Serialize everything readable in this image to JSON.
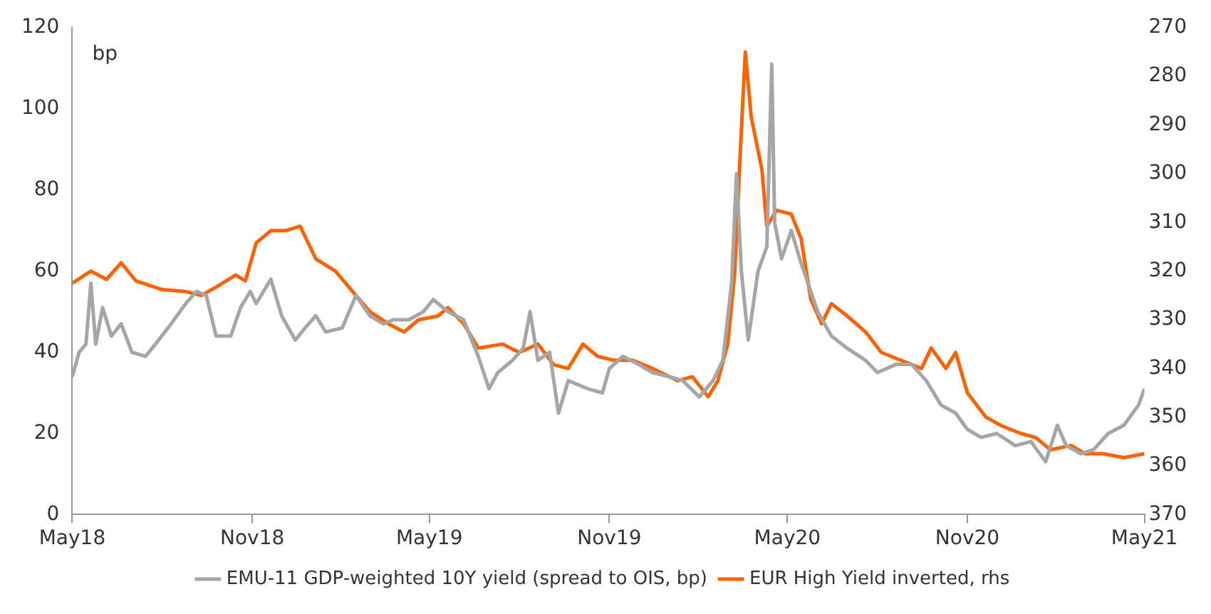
{
  "chart_data": {
    "type": "line",
    "annotations": [
      "bp"
    ],
    "xlim": [
      "2018-05-01",
      "2021-05-01"
    ],
    "xticks": [
      {
        "value": "2018-05-01",
        "label": "May18"
      },
      {
        "value": "2018-11-01",
        "label": "Nov18"
      },
      {
        "value": "2019-05-01",
        "label": "May19"
      },
      {
        "value": "2019-11-01",
        "label": "Nov19"
      },
      {
        "value": "2020-05-01",
        "label": "May20"
      },
      {
        "value": "2020-11-01",
        "label": "Nov20"
      },
      {
        "value": "2021-05-01",
        "label": "May21"
      }
    ],
    "ylim": [
      0,
      120
    ],
    "yticks": [
      0,
      20,
      40,
      60,
      80,
      100,
      120
    ],
    "y2lim": [
      370,
      270
    ],
    "y2ticks": [
      270,
      280,
      290,
      300,
      310,
      320,
      330,
      340,
      350,
      360,
      370
    ],
    "grid": false,
    "legend": "bottom",
    "marker": "none",
    "line_style": "solid",
    "series": [
      {
        "name": "EMU-11 GDP-weighted 10Y yield (spread to OIS, bp)",
        "color": "#a6a6a6",
        "x": [
          "2018-05-01",
          "2018-05-08",
          "2018-05-15",
          "2018-05-20",
          "2018-05-25",
          "2018-06-01",
          "2018-06-10",
          "2018-06-20",
          "2018-07-01",
          "2018-07-15",
          "2018-07-25",
          "2018-08-10",
          "2018-08-25",
          "2018-09-05",
          "2018-09-15",
          "2018-09-25",
          "2018-10-10",
          "2018-10-20",
          "2018-10-30",
          "2018-11-05",
          "2018-11-20",
          "2018-12-01",
          "2018-12-15",
          "2018-12-25",
          "2019-01-05",
          "2019-01-15",
          "2019-02-01",
          "2019-02-15",
          "2019-03-01",
          "2019-03-15",
          "2019-03-25",
          "2019-04-10",
          "2019-04-25",
          "2019-05-05",
          "2019-05-20",
          "2019-06-05",
          "2019-06-20",
          "2019-07-01",
          "2019-07-10",
          "2019-07-25",
          "2019-08-05",
          "2019-08-12",
          "2019-08-20",
          "2019-09-01",
          "2019-09-10",
          "2019-09-20",
          "2019-10-10",
          "2019-10-25",
          "2019-11-01",
          "2019-11-15",
          "2019-12-01",
          "2019-12-15",
          "2020-01-01",
          "2020-01-15",
          "2020-02-01",
          "2020-02-15",
          "2020-02-25",
          "2020-03-05",
          "2020-03-10",
          "2020-03-15",
          "2020-03-22",
          "2020-04-01",
          "2020-04-10",
          "2020-04-15",
          "2020-04-18",
          "2020-04-25",
          "2020-05-05",
          "2020-05-15",
          "2020-06-01",
          "2020-06-15",
          "2020-07-01",
          "2020-07-20",
          "2020-08-01",
          "2020-08-20",
          "2020-09-05",
          "2020-09-20",
          "2020-10-05",
          "2020-10-20",
          "2020-11-01",
          "2020-11-15",
          "2020-12-01",
          "2020-12-20",
          "2021-01-05",
          "2021-01-20",
          "2021-02-01",
          "2021-02-10",
          "2021-02-25",
          "2021-03-10",
          "2021-03-25",
          "2021-04-10",
          "2021-04-25",
          "2021-05-01"
        ],
        "values": [
          34,
          40,
          42,
          57,
          42,
          51,
          44,
          47,
          40,
          39,
          42,
          47,
          52,
          55,
          54,
          44,
          44,
          51,
          55,
          52,
          58,
          49,
          43,
          46,
          49,
          45,
          46,
          54,
          49,
          47,
          48,
          48,
          50,
          53,
          50,
          48,
          39,
          31,
          35,
          38,
          41,
          50,
          38,
          40,
          25,
          33,
          31,
          30,
          36,
          39,
          37,
          35,
          34,
          33,
          29,
          33,
          38,
          57,
          84,
          60,
          43,
          60,
          66,
          111,
          72,
          63,
          70,
          62,
          50,
          44,
          41,
          38,
          35,
          37,
          37,
          33,
          27,
          25,
          21,
          19,
          20,
          17,
          18,
          13,
          22,
          17,
          15,
          16,
          20,
          22,
          27,
          31
        ]
      },
      {
        "name": "EUR High Yield inverted, rhs",
        "color": "#ff6200",
        "axis": "y2",
        "x": [
          "2018-05-01",
          "2018-05-20",
          "2018-06-05",
          "2018-06-20",
          "2018-07-05",
          "2018-08-01",
          "2018-08-25",
          "2018-09-10",
          "2018-09-25",
          "2018-10-15",
          "2018-10-25",
          "2018-11-05",
          "2018-11-20",
          "2018-12-05",
          "2018-12-20",
          "2019-01-05",
          "2019-01-25",
          "2019-02-15",
          "2019-03-01",
          "2019-03-20",
          "2019-04-05",
          "2019-04-20",
          "2019-05-10",
          "2019-05-20",
          "2019-06-05",
          "2019-06-20",
          "2019-07-15",
          "2019-08-01",
          "2019-08-20",
          "2019-09-05",
          "2019-09-20",
          "2019-10-05",
          "2019-10-20",
          "2019-11-05",
          "2019-11-25",
          "2019-12-15",
          "2020-01-10",
          "2020-01-25",
          "2020-02-10",
          "2020-02-20",
          "2020-03-01",
          "2020-03-08",
          "2020-03-15",
          "2020-03-19",
          "2020-03-25",
          "2020-04-05",
          "2020-04-10",
          "2020-04-20",
          "2020-05-05",
          "2020-05-15",
          "2020-05-25",
          "2020-06-05",
          "2020-06-15",
          "2020-07-01",
          "2020-07-20",
          "2020-08-05",
          "2020-08-25",
          "2020-09-15",
          "2020-09-25",
          "2020-10-10",
          "2020-10-20",
          "2020-11-01",
          "2020-11-20",
          "2020-12-05",
          "2020-12-25",
          "2021-01-10",
          "2021-01-25",
          "2021-02-15",
          "2021-03-01",
          "2021-03-20",
          "2021-04-10",
          "2021-05-01"
        ],
        "values": [
          322.5,
          320,
          321.7,
          318.3,
          322,
          323.8,
          324.2,
          325,
          323.3,
          320.8,
          322,
          314.2,
          311.7,
          311.7,
          310.8,
          317.5,
          320,
          325,
          328.3,
          330.8,
          332.5,
          330,
          329.2,
          327.5,
          330.8,
          335.8,
          335,
          336.7,
          335,
          339.2,
          340,
          335,
          337.5,
          338.3,
          338.3,
          340,
          342.5,
          341.7,
          345.8,
          342.5,
          335,
          320.8,
          290.8,
          275,
          288.3,
          299.2,
          310.8,
          307.5,
          308.3,
          313.3,
          325.8,
          330.8,
          326.7,
          329.2,
          332.5,
          336.7,
          338.3,
          340,
          335.8,
          340,
          336.7,
          345,
          350,
          351.7,
          353.3,
          354.2,
          356.7,
          355.8,
          357.5,
          357.5,
          358.3,
          357.5
        ]
      }
    ]
  }
}
